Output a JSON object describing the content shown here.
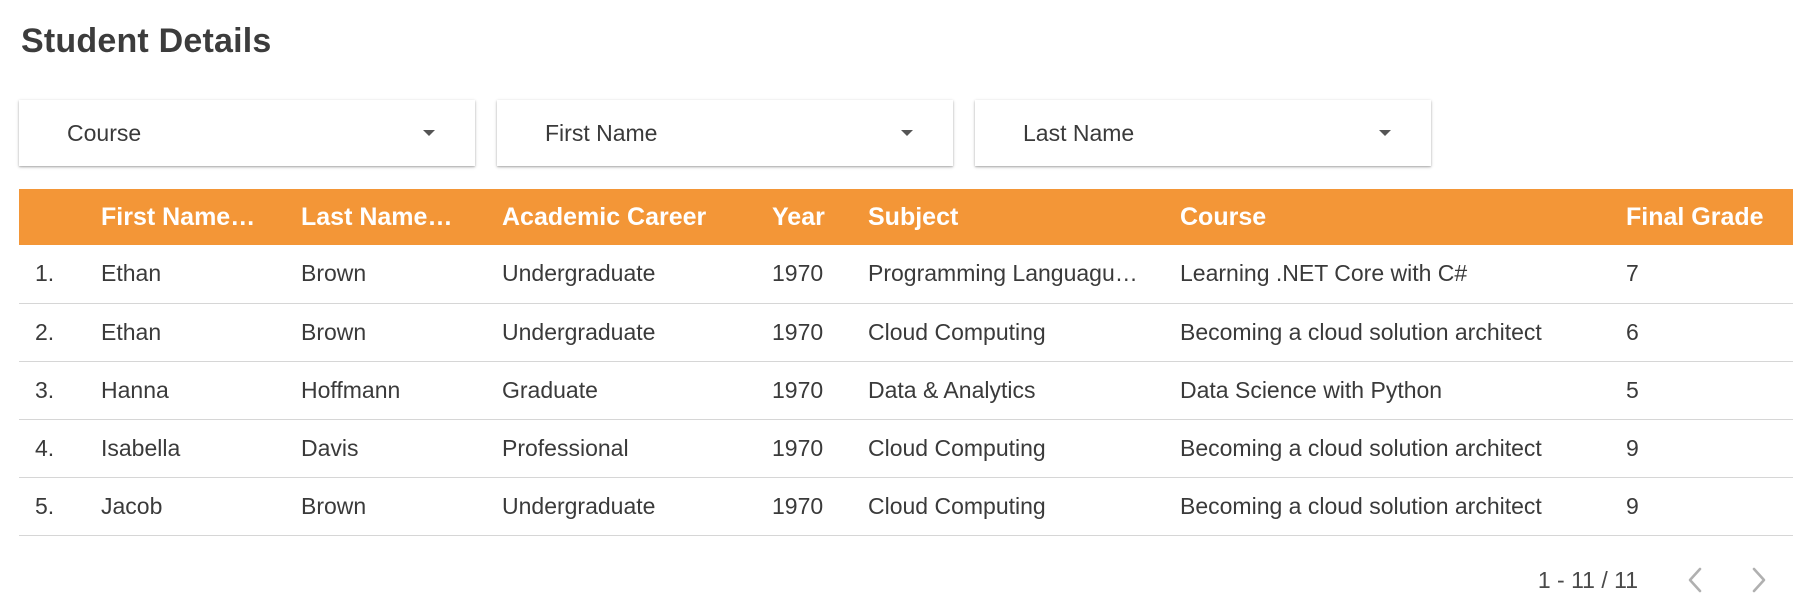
{
  "title": "Student Details",
  "filters": [
    {
      "label": "Course"
    },
    {
      "label": "First Name"
    },
    {
      "label": "Last Name"
    }
  ],
  "table": {
    "header_color": "#f39637",
    "columns": [
      "",
      "First Name…",
      "Last Name…",
      "Academic Career",
      "Year",
      "Subject",
      "Course",
      "Final Grade"
    ],
    "rows": [
      [
        "1.",
        "Ethan",
        "Brown",
        "Undergraduate",
        "1970",
        "Programming Languagu…",
        "Learning .NET Core with C#",
        "7"
      ],
      [
        "2.",
        "Ethan",
        "Brown",
        "Undergraduate",
        "1970",
        "Cloud Computing",
        "Becoming a cloud solution architect",
        "6"
      ],
      [
        "3.",
        "Hanna",
        "Hoffmann",
        "Graduate",
        "1970",
        "Data & Analytics",
        "Data Science with Python",
        "5"
      ],
      [
        "4.",
        "Isabella",
        "Davis",
        "Professional",
        "1970",
        "Cloud Computing",
        "Becoming a cloud solution architect",
        "9"
      ],
      [
        "5.",
        "Jacob",
        "Brown",
        "Undergraduate",
        "1970",
        "Cloud Computing",
        "Becoming a cloud solution architect",
        "9"
      ]
    ]
  },
  "pagination": {
    "range_text": "1 - 11 / 11",
    "prev_icon": "chevron-left-icon",
    "next_icon": "chevron-right-icon"
  }
}
